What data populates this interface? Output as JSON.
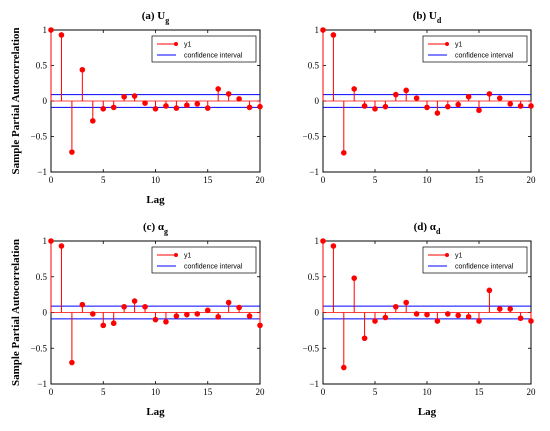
{
  "chart_data": [
    {
      "type": "stem",
      "title_main": "(a) U",
      "title_sub": "g",
      "xlabel": "Lag",
      "ylabel": "Sample Partial Autocorrelation",
      "xlim": [
        0,
        20
      ],
      "ylim": [
        -1,
        1
      ],
      "xticks": [
        "0",
        "5",
        "10",
        "15",
        "20"
      ],
      "yticks": [
        "−1",
        "−0.5",
        "0",
        "0.5",
        "1"
      ],
      "confidence_bounds": [
        0.09,
        -0.09
      ],
      "legend": {
        "stem": "y1",
        "bound": "confidence interval",
        "location": "top-right"
      },
      "series": [
        {
          "name": "y1",
          "x": [
            0,
            1,
            2,
            3,
            4,
            5,
            6,
            7,
            8,
            9,
            10,
            11,
            12,
            13,
            14,
            15,
            16,
            17,
            18,
            19,
            20
          ],
          "values": [
            1.0,
            0.93,
            -0.72,
            0.44,
            -0.28,
            -0.11,
            -0.09,
            0.06,
            0.07,
            -0.03,
            -0.11,
            -0.07,
            -0.1,
            -0.06,
            -0.04,
            -0.1,
            0.17,
            0.1,
            0.03,
            -0.09,
            -0.08
          ]
        }
      ]
    },
    {
      "type": "stem",
      "title_main": "(b) U",
      "title_sub": "d",
      "xlabel": "",
      "ylabel": "",
      "xlim": [
        0,
        20
      ],
      "ylim": [
        -1,
        1
      ],
      "xticks": [
        "0",
        "5",
        "10",
        "15",
        "20"
      ],
      "yticks": [
        "−1",
        "−0.5",
        "0",
        "0.5",
        "1"
      ],
      "confidence_bounds": [
        0.09,
        -0.09
      ],
      "legend": {
        "stem": "y1",
        "bound": "confidence interval",
        "location": "top-right"
      },
      "series": [
        {
          "name": "y1",
          "x": [
            0,
            1,
            2,
            3,
            4,
            5,
            6,
            7,
            8,
            9,
            10,
            11,
            12,
            13,
            14,
            15,
            16,
            17,
            18,
            19,
            20
          ],
          "values": [
            1.0,
            0.93,
            -0.73,
            0.17,
            -0.07,
            -0.11,
            -0.08,
            0.09,
            0.15,
            0.04,
            -0.09,
            -0.17,
            -0.08,
            -0.05,
            0.06,
            -0.13,
            0.1,
            0.04,
            -0.04,
            -0.07,
            -0.07
          ]
        }
      ]
    },
    {
      "type": "stem",
      "title_main": "(c) α",
      "title_sub": "g",
      "xlabel": "Lag",
      "ylabel": "Sample Partial Autocorrelation",
      "xlim": [
        0,
        20
      ],
      "ylim": [
        -1,
        1
      ],
      "xticks": [
        "0",
        "5",
        "10",
        "15",
        "20"
      ],
      "yticks": [
        "−1",
        "−0.5",
        "0",
        "0.5",
        "1"
      ],
      "confidence_bounds": [
        0.09,
        -0.09
      ],
      "legend": {
        "stem": "y1",
        "bound": "confidence interval",
        "location": "top-right"
      },
      "series": [
        {
          "name": "y1",
          "x": [
            0,
            1,
            2,
            3,
            4,
            5,
            6,
            7,
            8,
            9,
            10,
            11,
            12,
            13,
            14,
            15,
            16,
            17,
            18,
            19,
            20
          ],
          "values": [
            1.0,
            0.93,
            -0.7,
            0.11,
            -0.02,
            -0.18,
            -0.15,
            0.08,
            0.16,
            0.08,
            -0.1,
            -0.13,
            -0.05,
            -0.03,
            -0.02,
            0.03,
            -0.06,
            0.14,
            0.07,
            -0.05,
            -0.18
          ]
        }
      ]
    },
    {
      "type": "stem",
      "title_main": "(d) α",
      "title_sub": "d",
      "xlabel": "Lag",
      "ylabel": "",
      "xlim": [
        0,
        20
      ],
      "ylim": [
        -1,
        1
      ],
      "xticks": [
        "0",
        "5",
        "10",
        "15",
        "20"
      ],
      "yticks": [
        "−1",
        "−0.5",
        "0",
        "0.5",
        "1"
      ],
      "confidence_bounds": [
        0.09,
        -0.09
      ],
      "legend": {
        "stem": "y1",
        "bound": "confidence interval",
        "location": "top-right"
      },
      "series": [
        {
          "name": "y1",
          "x": [
            0,
            1,
            2,
            3,
            4,
            5,
            6,
            7,
            8,
            9,
            10,
            11,
            12,
            13,
            14,
            15,
            16,
            17,
            18,
            19,
            20
          ],
          "values": [
            1.0,
            0.93,
            -0.77,
            0.48,
            -0.36,
            -0.12,
            -0.07,
            0.08,
            0.14,
            -0.02,
            -0.03,
            -0.12,
            -0.02,
            -0.04,
            -0.06,
            -0.12,
            0.31,
            0.05,
            0.05,
            -0.08,
            -0.12
          ]
        }
      ]
    }
  ],
  "colors": {
    "stem": "#ff0000",
    "bound": "#0000ff",
    "axis": "#000000"
  }
}
